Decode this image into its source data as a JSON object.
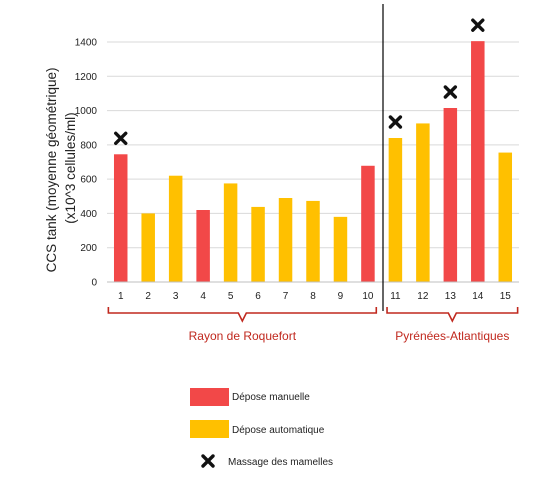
{
  "chart_data": {
    "type": "bar",
    "title": "",
    "ylabel_line1": "CCS tank (moyenne géométrique)",
    "ylabel_line2": "(x10^3 cellules/ml)",
    "xlabel": "",
    "ylim": [
      0,
      1400
    ],
    "yticks": [
      "0",
      "200",
      "400",
      "600",
      "800",
      "1000",
      "1200",
      "1400"
    ],
    "grid": true,
    "categories": [
      "1",
      "2",
      "3",
      "4",
      "5",
      "6",
      "7",
      "8",
      "9",
      "10",
      "11",
      "12",
      "13",
      "14",
      "15"
    ],
    "values": [
      745,
      400,
      620,
      420,
      575,
      438,
      490,
      473,
      380,
      678,
      840,
      925,
      1015,
      1405,
      755
    ],
    "bar_type": [
      "manual",
      "auto",
      "auto",
      "manual",
      "auto",
      "auto",
      "auto",
      "auto",
      "auto",
      "manual",
      "auto",
      "auto",
      "manual",
      "manual",
      "auto"
    ],
    "massage": [
      true,
      false,
      false,
      false,
      false,
      false,
      false,
      false,
      false,
      false,
      true,
      false,
      true,
      true,
      false
    ],
    "regions": [
      {
        "label": "Rayon de Roquefort",
        "from": 1,
        "to": 10
      },
      {
        "label": "Pyrénées-Atlantiques",
        "from": 11,
        "to": 15
      }
    ],
    "legend": {
      "manual": "Dépose manuelle",
      "auto": "Dépose automatique",
      "massage": "Massage des mamelles"
    },
    "legend_position": "bottom-center",
    "colors": {
      "manual": "#f24848",
      "auto": "#ffc000",
      "massage": "#111111",
      "bracket": "#c0281e",
      "grid": "#d9d9d9"
    }
  }
}
